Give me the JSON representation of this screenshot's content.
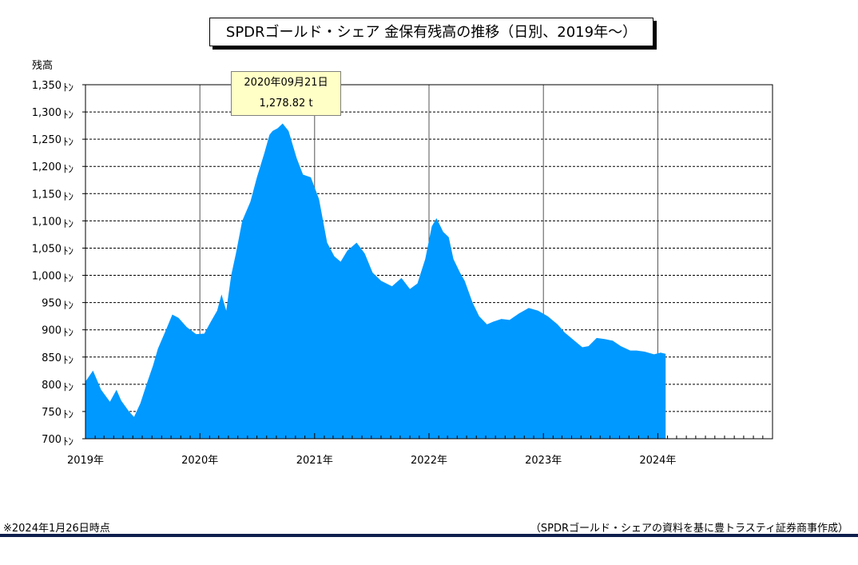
{
  "title": "SPDRゴールド・シェア 金保有残高の推移（日別、2019年～）",
  "footnote": "※2024年1月26日時点",
  "source": "（SPDRゴールド・シェアの資料を基に豊トラスティ証券商事作成）",
  "tooltip": {
    "date": "2020年09月21日",
    "value": "1,278.82 t"
  },
  "colors": {
    "area": "#0099ff",
    "gridline": "#000000",
    "tooltip_bg": "#ffffc6",
    "rule": "#0f1f4d"
  },
  "chart_data": {
    "type": "area",
    "ylabel": "残高",
    "y_unit": "ﾄﾝ",
    "ylim": [
      700,
      1350
    ],
    "y_ticks": [
      700,
      750,
      800,
      850,
      900,
      950,
      1000,
      1050,
      1100,
      1150,
      1200,
      1250,
      1300,
      1350
    ],
    "y_tick_labels": [
      "700",
      "750",
      "800",
      "850",
      "900",
      "950",
      "1,000",
      "1,050",
      "1,100",
      "1,150",
      "1,200",
      "1,250",
      "1,300",
      "1,350"
    ],
    "xlim": [
      "2019-01-01",
      "2025-01-01"
    ],
    "x_ticks": [
      "2019-01-01",
      "2020-01-01",
      "2021-01-01",
      "2022-01-01",
      "2023-01-01",
      "2024-01-01"
    ],
    "x_tick_labels": [
      "2019年",
      "2020年",
      "2021年",
      "2022年",
      "2023年",
      "2024年"
    ],
    "grid": true,
    "series": [
      {
        "x": [
          "2019-01-01",
          "2019-01-25",
          "2019-02-20",
          "2019-03-20",
          "2019-04-10",
          "2019-04-25",
          "2019-05-20",
          "2019-06-05",
          "2019-06-25",
          "2019-07-15",
          "2019-08-05",
          "2019-08-20",
          "2019-09-15",
          "2019-10-05",
          "2019-10-25",
          "2019-11-20",
          "2019-12-20",
          "2020-01-15",
          "2020-02-05",
          "2020-02-25",
          "2020-03-10",
          "2020-03-25",
          "2020-04-10",
          "2020-04-25",
          "2020-05-15",
          "2020-06-10",
          "2020-07-01",
          "2020-07-25",
          "2020-08-10",
          "2020-08-20",
          "2020-09-05",
          "2020-09-21",
          "2020-10-10",
          "2020-11-05",
          "2020-11-25",
          "2020-12-20",
          "2021-01-15",
          "2021-02-10",
          "2021-03-05",
          "2021-03-25",
          "2021-04-15",
          "2021-05-15",
          "2021-06-10",
          "2021-07-05",
          "2021-08-01",
          "2021-09-05",
          "2021-10-05",
          "2021-11-01",
          "2021-11-25",
          "2021-12-20",
          "2022-01-10",
          "2022-01-25",
          "2022-02-15",
          "2022-03-05",
          "2022-03-20",
          "2022-04-10",
          "2022-04-25",
          "2022-05-20",
          "2022-06-10",
          "2022-07-05",
          "2022-07-25",
          "2022-08-20",
          "2022-09-15",
          "2022-10-15",
          "2022-11-15",
          "2022-12-15",
          "2023-01-15",
          "2023-02-15",
          "2023-03-10",
          "2023-04-10",
          "2023-05-05",
          "2023-05-25",
          "2023-06-20",
          "2023-07-15",
          "2023-08-10",
          "2023-09-05",
          "2023-10-05",
          "2023-10-25",
          "2023-11-20",
          "2023-12-20",
          "2024-01-10",
          "2024-01-26"
        ],
        "values": [
          805,
          825,
          790,
          768,
          790,
          770,
          750,
          740,
          765,
          800,
          835,
          865,
          900,
          928,
          922,
          905,
          892,
          893,
          915,
          935,
          965,
          935,
          1000,
          1040,
          1100,
          1135,
          1180,
          1225,
          1258,
          1265,
          1270,
          1278.82,
          1265,
          1215,
          1185,
          1180,
          1140,
          1060,
          1035,
          1025,
          1045,
          1060,
          1040,
          1005,
          990,
          980,
          995,
          975,
          985,
          1030,
          1090,
          1105,
          1080,
          1070,
          1030,
          1005,
          990,
          950,
          925,
          910,
          915,
          920,
          918,
          930,
          940,
          935,
          925,
          910,
          895,
          880,
          868,
          870,
          885,
          883,
          880,
          870,
          862,
          862,
          860,
          855,
          858,
          856
        ]
      }
    ]
  }
}
